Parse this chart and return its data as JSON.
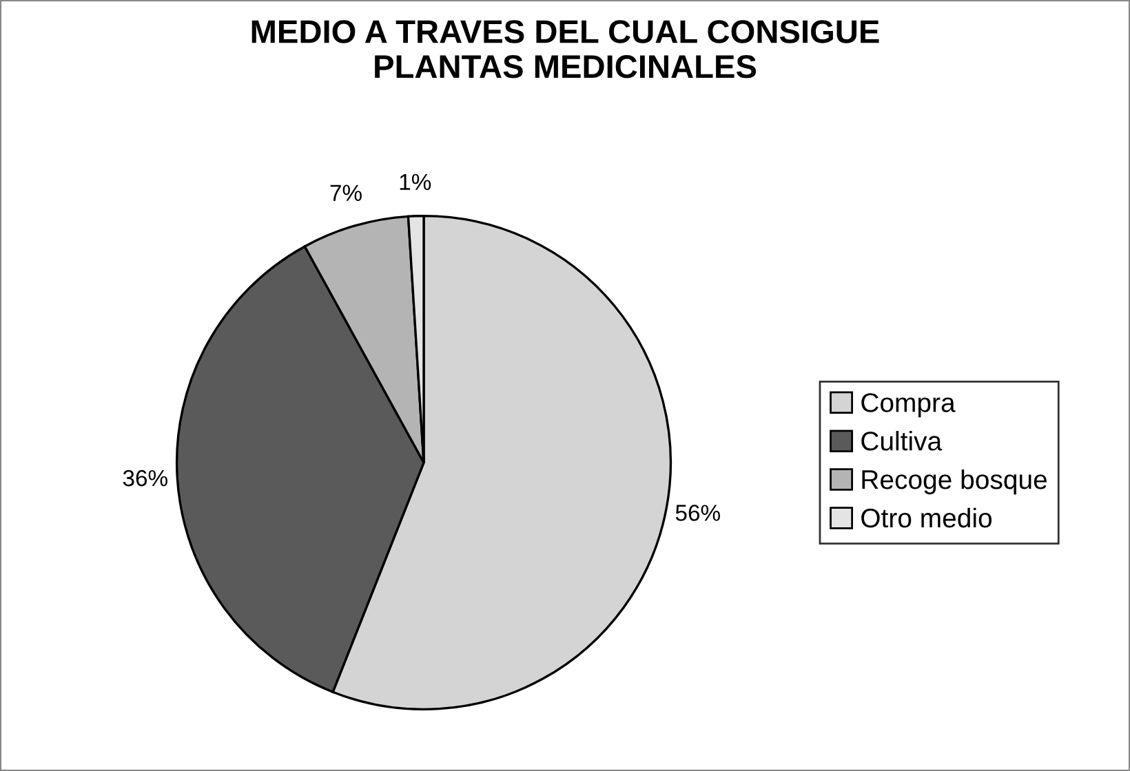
{
  "chart_data": {
    "type": "pie",
    "title": "MEDIO A TRAVES DEL CUAL CONSIGUE\nPLANTAS MEDICINALES",
    "categories": [
      "Compra",
      "Cultiva",
      "Recoge bosque",
      "Otro medio"
    ],
    "values": [
      56,
      36,
      7,
      1
    ],
    "colors": [
      "#d4d4d4",
      "#5a5a5a",
      "#b4b4b4",
      "#e4e4e4"
    ],
    "value_labels": [
      "56%",
      "36%",
      "7%",
      "1%"
    ],
    "legend": "right"
  }
}
